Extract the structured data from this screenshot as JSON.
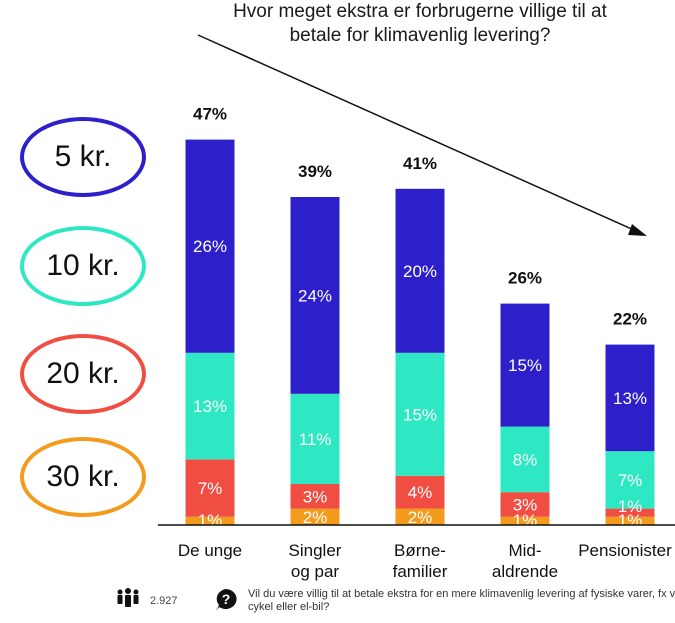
{
  "title": {
    "line1": "Hvor meget ekstra er forbrugerne villige til at",
    "line2": "betale for klimavenlig levering?"
  },
  "legend": [
    {
      "label": "5 kr.",
      "color": "#2d1fc9"
    },
    {
      "label": "10 kr.",
      "color": "#2ee8c3"
    },
    {
      "label": "20 kr.",
      "color": "#f14e43"
    },
    {
      "label": "30 kr.",
      "color": "#f39b1c"
    }
  ],
  "categories": [
    {
      "line1": "De unge",
      "line2": ""
    },
    {
      "line1": "Singler",
      "line2": "og par"
    },
    {
      "line1": "Børne-",
      "line2": "familier"
    },
    {
      "line1": "Mid-",
      "line2": "aldrende"
    },
    {
      "line1": "Pensionister",
      "line2": ""
    }
  ],
  "footer": {
    "respondents": "2.927",
    "question": "Vil du være villig til at betale ekstra for en mere klimavenlig levering af fysiske varer, fx via cykel eller el-bil?"
  },
  "chart_data": {
    "type": "bar",
    "stacked": true,
    "categories": [
      "De unge",
      "Singler og par",
      "Børnefamilier",
      "Midaldrende",
      "Pensionister"
    ],
    "series": [
      {
        "name": "30 kr.",
        "color": "#f39b1c",
        "values": [
          1,
          2,
          2,
          1,
          1
        ],
        "labels": [
          "1%",
          "2%",
          "2%",
          "1%",
          "1%"
        ]
      },
      {
        "name": "20 kr.",
        "color": "#f14e43",
        "values": [
          7,
          3,
          4,
          3,
          1
        ],
        "labels": [
          "7%",
          "3%",
          "4%",
          "3%",
          "1%"
        ]
      },
      {
        "name": "10 kr.",
        "color": "#2ee8c3",
        "values": [
          13,
          11,
          15,
          8,
          7
        ],
        "labels": [
          "13%",
          "11%",
          "15%",
          "8%",
          "7%"
        ]
      },
      {
        "name": "5 kr.",
        "color": "#2d1fc9",
        "values": [
          26,
          24,
          20,
          15,
          13
        ],
        "labels": [
          "26%",
          "24%",
          "20%",
          "15%",
          "13%"
        ]
      }
    ],
    "totals": [
      47,
      39,
      41,
      26,
      22
    ],
    "total_labels": [
      "47%",
      "39%",
      "41%",
      "26%",
      "22%"
    ],
    "trend_arrow": "decreasing",
    "grid": false,
    "legend_placement": "left"
  }
}
